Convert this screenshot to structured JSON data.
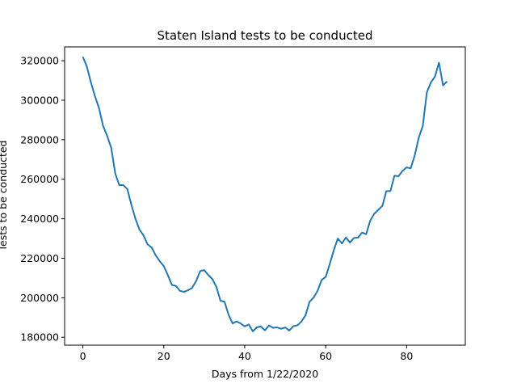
{
  "chart_data": {
    "type": "line",
    "title": "Staten Island tests to be conducted",
    "xlabel": "Days from 1/22/2020",
    "ylabel": "Tests to be conducted",
    "xlim": [
      -4.5,
      94.5
    ],
    "ylim": [
      176000,
      327000
    ],
    "x_ticks": [
      0,
      20,
      40,
      60,
      80
    ],
    "y_ticks": [
      180000,
      200000,
      220000,
      240000,
      260000,
      280000,
      300000,
      320000
    ],
    "grid": false,
    "line_color": "#1f77b4",
    "series": [
      {
        "x": [
          0,
          1,
          2,
          3,
          4,
          5,
          6,
          7,
          8,
          9,
          10,
          11,
          12,
          13,
          14,
          15,
          16,
          17,
          18,
          19,
          20,
          21,
          22,
          23,
          24,
          25,
          26,
          27,
          28,
          29,
          30,
          31,
          32,
          33,
          34,
          35,
          36,
          37,
          38,
          39,
          40,
          41,
          42,
          43,
          44,
          45,
          46,
          47,
          48,
          49,
          50,
          51,
          52,
          53,
          54,
          55,
          56,
          57,
          58,
          59,
          60,
          61,
          62,
          63,
          64,
          65,
          66,
          67,
          68,
          69,
          70,
          71,
          72,
          73,
          74,
          75,
          76,
          77,
          78,
          79,
          80,
          81,
          82,
          83,
          84,
          85,
          86,
          87,
          88,
          89,
          90
        ],
        "values": [
          322000,
          317000,
          309000,
          302000,
          296000,
          287000,
          282000,
          276000,
          263000,
          257000,
          257000,
          255000,
          247000,
          240000,
          234500,
          231500,
          227000,
          225500,
          221500,
          218500,
          216000,
          211500,
          206500,
          206000,
          203500,
          203000,
          203800,
          205000,
          208500,
          213500,
          214000,
          211500,
          209500,
          205500,
          198500,
          198000,
          191500,
          187000,
          188000,
          187000,
          185500,
          186500,
          183000,
          185000,
          185500,
          183500,
          186000,
          184800,
          185000,
          184300,
          185000,
          183400,
          185600,
          186000,
          188000,
          191000,
          197900,
          200000,
          203500,
          209000,
          210500,
          217000,
          224000,
          230000,
          227500,
          230500,
          228000,
          230300,
          230500,
          233000,
          232200,
          239000,
          242500,
          244500,
          246500,
          254000,
          254000,
          261800,
          261500,
          264300,
          266000,
          265500,
          272000,
          281000,
          287000,
          304000,
          309000,
          312000,
          319000,
          307500,
          309500
        ]
      }
    ]
  }
}
